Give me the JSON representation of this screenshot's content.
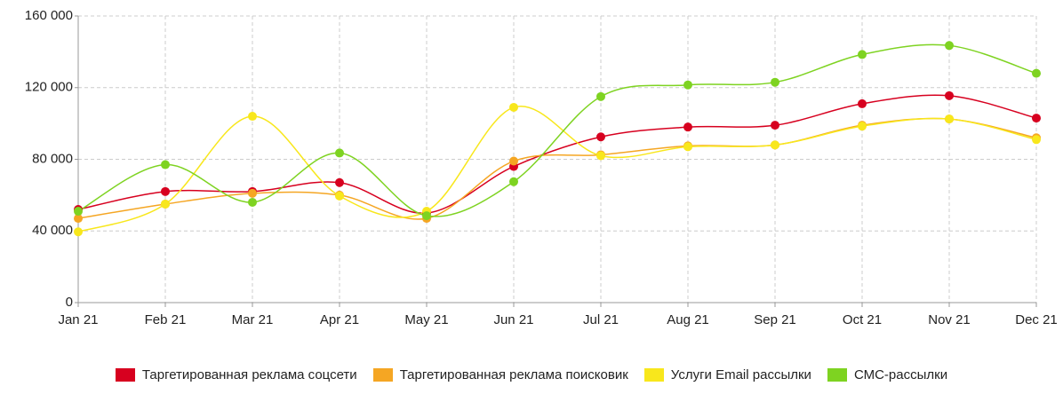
{
  "chart_data": {
    "type": "line",
    "categories": [
      "Jan 21",
      "Feb 21",
      "Mar 21",
      "Apr 21",
      "May 21",
      "Jun 21",
      "Jul 21",
      "Aug 21",
      "Sep 21",
      "Oct 21",
      "Nov 21",
      "Dec 21"
    ],
    "series": [
      {
        "name": "Таргетированная реклама соцсети",
        "color": "#d7001f",
        "values": [
          52000,
          62000,
          62000,
          67000,
          50000,
          76000,
          92500,
          98000,
          99000,
          111000,
          115500,
          103000
        ]
      },
      {
        "name": "Таргетированная реклама поисковик",
        "color": "#f5a623",
        "values": [
          47000,
          55000,
          61000,
          60000,
          47000,
          79000,
          82500,
          87500,
          88000,
          99000,
          102500,
          92000
        ]
      },
      {
        "name": "Услуги Email рассылки",
        "color": "#f8e71c",
        "values": [
          39500,
          55000,
          104000,
          59500,
          51000,
          109000,
          82000,
          87000,
          88000,
          98500,
          102500,
          91000
        ]
      },
      {
        "name": "СМС-рассылки",
        "color": "#7ed321",
        "values": [
          51000,
          77000,
          56000,
          83500,
          48500,
          67500,
          115000,
          121500,
          123000,
          138500,
          143500,
          128000
        ]
      }
    ],
    "ylim": [
      0,
      160000
    ],
    "yticks": [
      0,
      {
        "value": 40000,
        "label": "40 000"
      },
      {
        "value": 80000,
        "label": "80 000"
      },
      {
        "value": 120000,
        "label": "120 000"
      },
      {
        "value": 160000,
        "label": "160 000"
      }
    ],
    "grid": true,
    "legend": "bottom"
  }
}
